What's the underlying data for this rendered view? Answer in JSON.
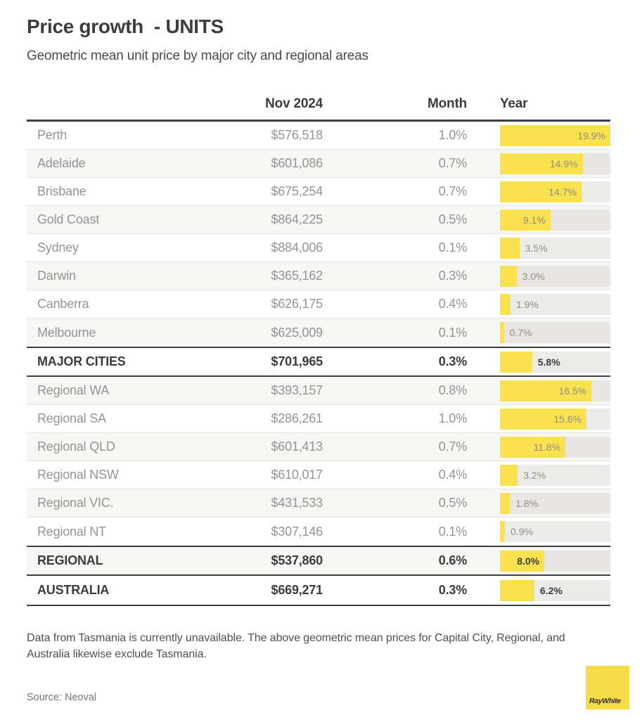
{
  "header": {
    "title": "Price growth  - UNITS",
    "subtitle": "Geometric mean unit price by major city and regional areas"
  },
  "table": {
    "columns": {
      "price": "Nov 2024",
      "month": "Month",
      "year": "Year"
    },
    "bar_scale_max": 19.9,
    "rows": [
      {
        "label": "Perth",
        "price": "$576,518",
        "month": "1.0%",
        "year": 19.9,
        "year_label": "19.9%",
        "bold": false
      },
      {
        "label": "Adelaide",
        "price": "$601,086",
        "month": "0.7%",
        "year": 14.9,
        "year_label": "14.9%",
        "bold": false
      },
      {
        "label": "Brisbane",
        "price": "$675,254",
        "month": "0.7%",
        "year": 14.7,
        "year_label": "14.7%",
        "bold": false
      },
      {
        "label": "Gold Coast",
        "price": "$864,225",
        "month": "0.5%",
        "year": 9.1,
        "year_label": "9.1%",
        "bold": false
      },
      {
        "label": "Sydney",
        "price": "$884,006",
        "month": "0.1%",
        "year": 3.5,
        "year_label": "3.5%",
        "bold": false
      },
      {
        "label": "Darwin",
        "price": "$365,162",
        "month": "0.3%",
        "year": 3.0,
        "year_label": "3.0%",
        "bold": false
      },
      {
        "label": "Canberra",
        "price": "$626,175",
        "month": "0.4%",
        "year": 1.9,
        "year_label": "1.9%",
        "bold": false
      },
      {
        "label": "Melbourne",
        "price": "$625,009",
        "month": "0.1%",
        "year": 0.7,
        "year_label": "0.7%",
        "bold": false
      },
      {
        "label": "MAJOR CITIES",
        "price": "$701,965",
        "month": "0.3%",
        "year": 5.8,
        "year_label": "5.8%",
        "bold": true
      },
      {
        "label": "Regional WA",
        "price": "$393,157",
        "month": "0.8%",
        "year": 16.5,
        "year_label": "16.5%",
        "bold": false
      },
      {
        "label": "Regional SA",
        "price": "$286,261",
        "month": "1.0%",
        "year": 15.6,
        "year_label": "15.6%",
        "bold": false
      },
      {
        "label": "Regional QLD",
        "price": "$601,413",
        "month": "0.7%",
        "year": 11.8,
        "year_label": "11.8%",
        "bold": false
      },
      {
        "label": "Regional NSW",
        "price": "$610,017",
        "month": "0.4%",
        "year": 3.2,
        "year_label": "3.2%",
        "bold": false
      },
      {
        "label": "Regional VIC.",
        "price": "$431,533",
        "month": "0.5%",
        "year": 1.8,
        "year_label": "1.8%",
        "bold": false
      },
      {
        "label": "Regional NT",
        "price": "$307,146",
        "month": "0.1%",
        "year": 0.9,
        "year_label": "0.9%",
        "bold": false
      },
      {
        "label": "REGIONAL",
        "price": "$537,860",
        "month": "0.6%",
        "year": 8.0,
        "year_label": "8.0%",
        "bold": true
      },
      {
        "label": "AUSTRALIA",
        "price": "$669,271",
        "month": "0.3%",
        "year": 6.2,
        "year_label": "6.2%",
        "bold": true
      }
    ]
  },
  "chart_data": {
    "type": "bar",
    "orientation": "horizontal",
    "title": "Price growth - UNITS",
    "subtitle": "Geometric mean unit price by major city and regional areas",
    "categories": [
      "Perth",
      "Adelaide",
      "Brisbane",
      "Gold Coast",
      "Sydney",
      "Darwin",
      "Canberra",
      "Melbourne",
      "MAJOR CITIES",
      "Regional WA",
      "Regional SA",
      "Regional QLD",
      "Regional NSW",
      "Regional VIC.",
      "Regional NT",
      "REGIONAL",
      "AUSTRALIA"
    ],
    "series": [
      {
        "name": "Nov 2024 price ($)",
        "values": [
          576518,
          601086,
          675254,
          864225,
          884006,
          365162,
          626175,
          625009,
          701965,
          393157,
          286261,
          601413,
          610017,
          431533,
          307146,
          537860,
          669271
        ]
      },
      {
        "name": "Month (%)",
        "values": [
          1.0,
          0.7,
          0.7,
          0.5,
          0.1,
          0.3,
          0.4,
          0.1,
          0.3,
          0.8,
          1.0,
          0.7,
          0.4,
          0.5,
          0.1,
          0.6,
          0.3
        ]
      },
      {
        "name": "Year (%)",
        "values": [
          19.9,
          14.9,
          14.7,
          9.1,
          3.5,
          3.0,
          1.9,
          0.7,
          5.8,
          16.5,
          15.6,
          11.8,
          3.2,
          1.8,
          0.9,
          8.0,
          6.2
        ]
      }
    ],
    "bar_axis_max": 19.9,
    "legend": false,
    "grid": false
  },
  "footer": {
    "note": "Data from Tasmania is currently unavailable. The above geometric mean prices for Capital City, Regional, and Australia likewise exclude Tasmania.",
    "source": "Source: Neoval",
    "logo_text": "RayWhite"
  },
  "colors": {
    "accent_yellow": "#f9e14f",
    "logo_yellow": "#f5dd4a",
    "bar_track": "#ebebe9",
    "zebra_row": "#f6f6f4",
    "dark_text": "#3c3c3c",
    "muted_text": "#949494",
    "rule_dark": "#3f3f3f",
    "rule_light": "#e4e4e4"
  }
}
